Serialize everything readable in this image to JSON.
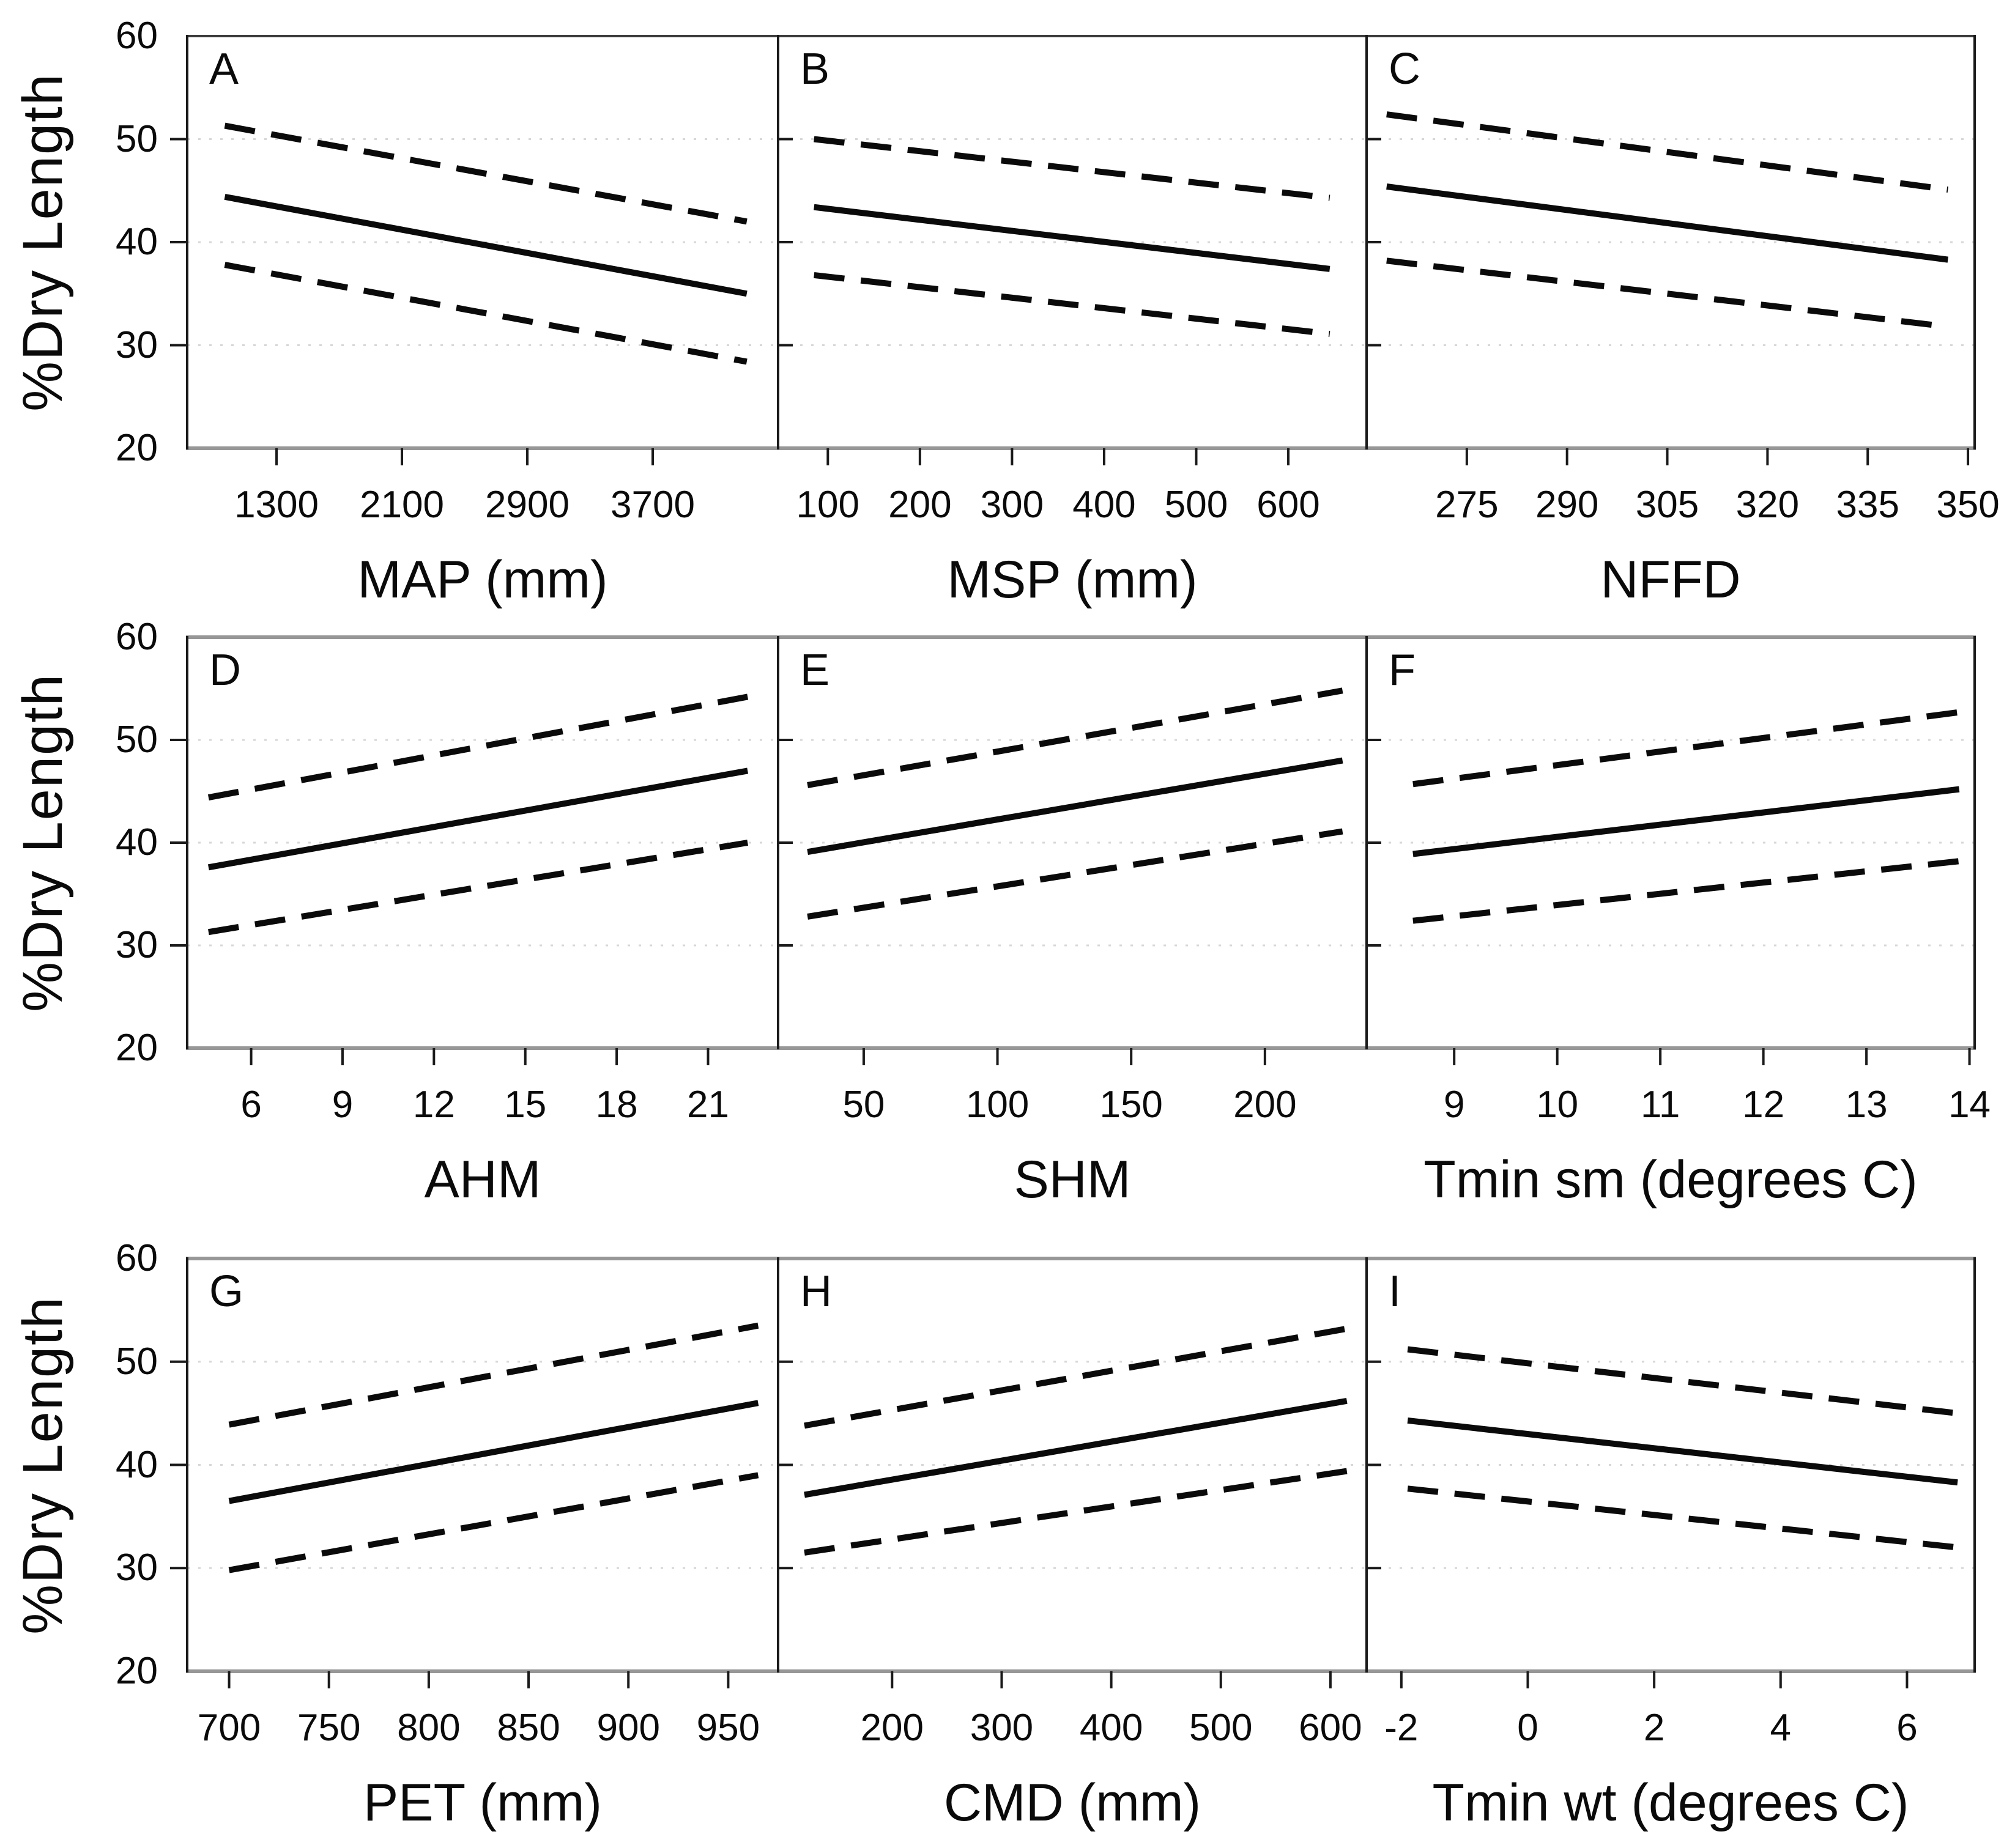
{
  "figure": {
    "y_axis_title": "%Dry Length",
    "y_ticks": [
      "60",
      "50",
      "40",
      "30",
      "20"
    ],
    "background_color": "#ffffff",
    "line_color": "#0a0a0a",
    "gridline_color": "#d7d7d7",
    "frame_vertical_color": "#1a1a1a",
    "frame_horizontal_color": "#979797",
    "row1_top_frame_color": "#3c3c3c"
  },
  "chart_data": [
    {
      "panel": "A",
      "type": "line",
      "xlabel": "MAP (mm)",
      "ylabel": "%Dry Length",
      "x_ticks": [
        1300,
        2100,
        2900,
        3700
      ],
      "xlim": [
        730,
        4500
      ],
      "ylim": [
        20,
        60
      ],
      "y_gridlines": [
        30,
        40,
        50
      ],
      "grid": "dotted-horizontal",
      "legend": "none",
      "series": [
        {
          "name": "fit-solid",
          "style": "solid",
          "x": [
            970,
            4300
          ],
          "y": [
            44.4,
            35.0
          ]
        },
        {
          "name": "upper-dashed",
          "style": "dashed",
          "x": [
            970,
            4300
          ],
          "y": [
            51.3,
            42.0
          ]
        },
        {
          "name": "lower-dashed",
          "style": "dashed",
          "x": [
            970,
            4300
          ],
          "y": [
            37.8,
            28.4
          ]
        }
      ]
    },
    {
      "panel": "B",
      "type": "line",
      "xlabel": "MSP (mm)",
      "ylabel": "%Dry Length",
      "x_ticks": [
        100,
        200,
        300,
        400,
        500,
        600
      ],
      "xlim": [
        46,
        685
      ],
      "ylim": [
        20,
        60
      ],
      "y_gridlines": [
        30,
        40,
        50
      ],
      "grid": "dotted-horizontal",
      "legend": "none",
      "series": [
        {
          "name": "fit-solid",
          "style": "solid",
          "x": [
            85,
            645
          ],
          "y": [
            43.4,
            37.4
          ]
        },
        {
          "name": "upper-dashed",
          "style": "dashed",
          "x": [
            85,
            645
          ],
          "y": [
            50.0,
            44.3
          ]
        },
        {
          "name": "lower-dashed",
          "style": "dashed",
          "x": [
            85,
            645
          ],
          "y": [
            36.8,
            31.1
          ]
        }
      ]
    },
    {
      "panel": "C",
      "type": "line",
      "xlabel": "NFFD",
      "ylabel": "%Dry Length",
      "x_ticks": [
        275,
        290,
        305,
        320,
        335,
        350
      ],
      "xlim": [
        260,
        351
      ],
      "ylim": [
        20,
        60
      ],
      "y_gridlines": [
        30,
        40,
        50
      ],
      "grid": "dotted-horizontal",
      "legend": "none",
      "series": [
        {
          "name": "fit-solid",
          "style": "solid",
          "x": [
            263,
            347
          ],
          "y": [
            45.4,
            38.3
          ]
        },
        {
          "name": "upper-dashed",
          "style": "dashed",
          "x": [
            263,
            347
          ],
          "y": [
            52.4,
            45.1
          ]
        },
        {
          "name": "lower-dashed",
          "style": "dashed",
          "x": [
            263,
            347
          ],
          "y": [
            38.2,
            31.8
          ]
        }
      ]
    },
    {
      "panel": "D",
      "type": "line",
      "xlabel": "AHM",
      "ylabel": "%Dry Length",
      "x_ticks": [
        6,
        9,
        12,
        15,
        18,
        21
      ],
      "xlim": [
        3.9,
        23.3
      ],
      "ylim": [
        20,
        60
      ],
      "y_gridlines": [
        30,
        40,
        50
      ],
      "grid": "dotted-horizontal",
      "legend": "none",
      "series": [
        {
          "name": "fit-solid",
          "style": "solid",
          "x": [
            4.6,
            22.3
          ],
          "y": [
            37.6,
            47.0
          ]
        },
        {
          "name": "upper-dashed",
          "style": "dashed",
          "x": [
            4.6,
            22.3
          ],
          "y": [
            44.4,
            54.2
          ]
        },
        {
          "name": "lower-dashed",
          "style": "dashed",
          "x": [
            4.6,
            22.3
          ],
          "y": [
            31.3,
            40.0
          ]
        }
      ]
    },
    {
      "panel": "E",
      "type": "line",
      "xlabel": "SHM",
      "ylabel": "%Dry Length",
      "x_ticks": [
        50,
        100,
        150,
        200
      ],
      "xlim": [
        18,
        238
      ],
      "ylim": [
        20,
        60
      ],
      "y_gridlines": [
        30,
        40,
        50
      ],
      "grid": "dotted-horizontal",
      "legend": "none",
      "series": [
        {
          "name": "fit-solid",
          "style": "solid",
          "x": [
            29,
            229
          ],
          "y": [
            39.1,
            48.0
          ]
        },
        {
          "name": "upper-dashed",
          "style": "dashed",
          "x": [
            29,
            229
          ],
          "y": [
            45.6,
            54.8
          ]
        },
        {
          "name": "lower-dashed",
          "style": "dashed",
          "x": [
            29,
            229
          ],
          "y": [
            32.8,
            41.1
          ]
        }
      ]
    },
    {
      "panel": "F",
      "type": "line",
      "xlabel": "Tmin sm (degrees C)",
      "ylabel": "%Dry Length",
      "x_ticks": [
        9,
        10,
        11,
        12,
        13,
        14
      ],
      "xlim": [
        8.15,
        14.05
      ],
      "ylim": [
        20,
        60
      ],
      "y_gridlines": [
        30,
        40,
        50
      ],
      "grid": "dotted-horizontal",
      "legend": "none",
      "series": [
        {
          "name": "fit-solid",
          "style": "solid",
          "x": [
            8.6,
            13.9
          ],
          "y": [
            38.9,
            45.2
          ]
        },
        {
          "name": "upper-dashed",
          "style": "dashed",
          "x": [
            8.6,
            13.9
          ],
          "y": [
            45.7,
            52.7
          ]
        },
        {
          "name": "lower-dashed",
          "style": "dashed",
          "x": [
            8.6,
            13.9
          ],
          "y": [
            32.4,
            38.2
          ]
        }
      ]
    },
    {
      "panel": "G",
      "type": "line",
      "xlabel": "PET (mm)",
      "ylabel": "%Dry Length",
      "x_ticks": [
        700,
        750,
        800,
        850,
        900,
        950
      ],
      "xlim": [
        679,
        975
      ],
      "ylim": [
        20,
        60
      ],
      "y_gridlines": [
        30,
        40,
        50
      ],
      "grid": "dotted-horizontal",
      "legend": "none",
      "series": [
        {
          "name": "fit-solid",
          "style": "solid",
          "x": [
            700,
            965
          ],
          "y": [
            36.5,
            46.0
          ]
        },
        {
          "name": "upper-dashed",
          "style": "dashed",
          "x": [
            700,
            965
          ],
          "y": [
            43.9,
            53.5
          ]
        },
        {
          "name": "lower-dashed",
          "style": "dashed",
          "x": [
            700,
            965
          ],
          "y": [
            29.8,
            39.0
          ]
        }
      ]
    },
    {
      "panel": "H",
      "type": "line",
      "xlabel": "CMD (mm)",
      "ylabel": "%Dry Length",
      "x_ticks": [
        200,
        300,
        400,
        500,
        600
      ],
      "xlim": [
        96,
        633
      ],
      "ylim": [
        20,
        60
      ],
      "y_gridlines": [
        30,
        40,
        50
      ],
      "grid": "dotted-horizontal",
      "legend": "none",
      "series": [
        {
          "name": "fit-solid",
          "style": "solid",
          "x": [
            120,
            615
          ],
          "y": [
            37.1,
            46.2
          ]
        },
        {
          "name": "upper-dashed",
          "style": "dashed",
          "x": [
            120,
            615
          ],
          "y": [
            43.8,
            53.2
          ]
        },
        {
          "name": "lower-dashed",
          "style": "dashed",
          "x": [
            120,
            615
          ],
          "y": [
            31.5,
            39.4
          ]
        }
      ]
    },
    {
      "panel": "I",
      "type": "line",
      "xlabel": "Tmin wt (degrees C)",
      "ylabel": "%Dry Length",
      "x_ticks": [
        -2,
        0,
        2,
        4,
        6
      ],
      "xlim": [
        -2.55,
        7.07
      ],
      "ylim": [
        20,
        60
      ],
      "y_gridlines": [
        30,
        40,
        50
      ],
      "grid": "dotted-horizontal",
      "legend": "none",
      "series": [
        {
          "name": "fit-solid",
          "style": "solid",
          "x": [
            -1.9,
            6.8
          ],
          "y": [
            44.3,
            38.3
          ]
        },
        {
          "name": "upper-dashed",
          "style": "dashed",
          "x": [
            -1.9,
            6.8
          ],
          "y": [
            51.2,
            45.0
          ]
        },
        {
          "name": "lower-dashed",
          "style": "dashed",
          "x": [
            -1.9,
            6.8
          ],
          "y": [
            37.7,
            32.0
          ]
        }
      ]
    }
  ]
}
